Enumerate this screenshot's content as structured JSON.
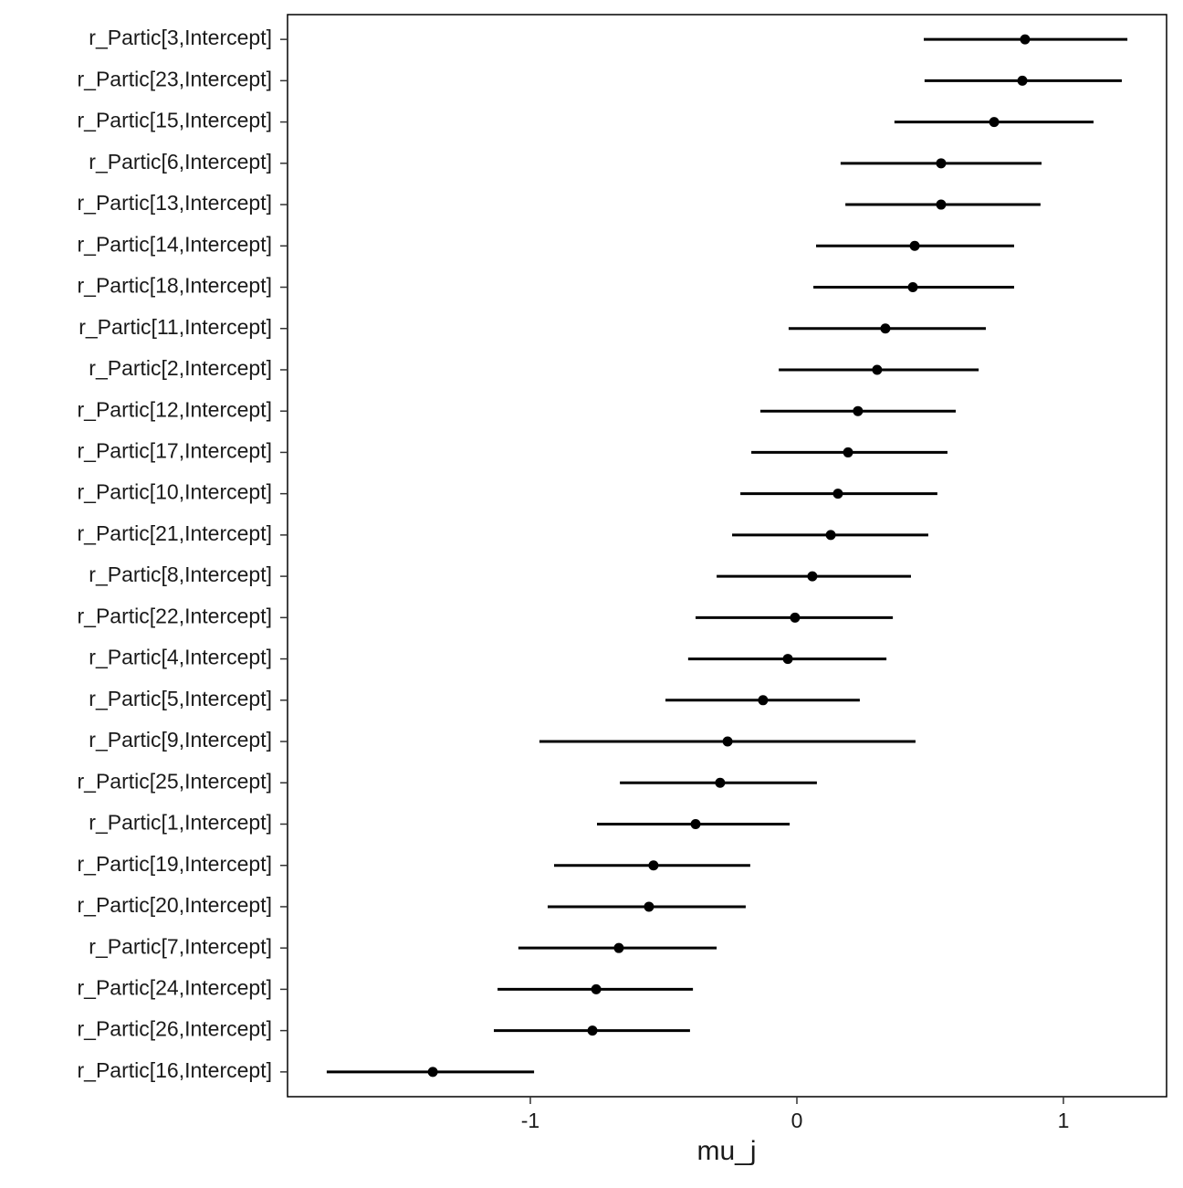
{
  "chart_data": {
    "type": "pointrange",
    "xlabel": "mu_j",
    "categories": [
      "r_Partic[3,Intercept]",
      "r_Partic[23,Intercept]",
      "r_Partic[15,Intercept]",
      "r_Partic[6,Intercept]",
      "r_Partic[13,Intercept]",
      "r_Partic[14,Intercept]",
      "r_Partic[18,Intercept]",
      "r_Partic[11,Intercept]",
      "r_Partic[2,Intercept]",
      "r_Partic[12,Intercept]",
      "r_Partic[17,Intercept]",
      "r_Partic[10,Intercept]",
      "r_Partic[21,Intercept]",
      "r_Partic[8,Intercept]",
      "r_Partic[22,Intercept]",
      "r_Partic[4,Intercept]",
      "r_Partic[5,Intercept]",
      "r_Partic[9,Intercept]",
      "r_Partic[25,Intercept]",
      "r_Partic[1,Intercept]",
      "r_Partic[19,Intercept]",
      "r_Partic[20,Intercept]",
      "r_Partic[7,Intercept]",
      "r_Partic[24,Intercept]",
      "r_Partic[26,Intercept]",
      "r_Partic[16,Intercept]"
    ],
    "values": [
      0.856,
      0.846,
      0.74,
      0.541,
      0.541,
      0.442,
      0.435,
      0.332,
      0.301,
      0.229,
      0.192,
      0.154,
      0.127,
      0.058,
      -0.007,
      -0.034,
      -0.127,
      -0.26,
      -0.288,
      -0.38,
      -0.538,
      -0.555,
      -0.668,
      -0.753,
      -0.767,
      -1.366
    ],
    "lower": [
      0.476,
      0.479,
      0.366,
      0.164,
      0.182,
      0.072,
      0.062,
      -0.031,
      -0.068,
      -0.137,
      -0.171,
      -0.212,
      -0.243,
      -0.301,
      -0.38,
      -0.408,
      -0.493,
      -0.966,
      -0.664,
      -0.75,
      -0.911,
      -0.935,
      -1.045,
      -1.123,
      -1.137,
      -1.764
    ],
    "upper": [
      1.24,
      1.219,
      1.113,
      0.918,
      0.914,
      0.815,
      0.815,
      0.709,
      0.682,
      0.596,
      0.565,
      0.527,
      0.493,
      0.428,
      0.36,
      0.336,
      0.236,
      0.445,
      0.075,
      -0.027,
      -0.175,
      -0.192,
      -0.301,
      -0.39,
      -0.401,
      -0.986
    ],
    "color": "#000000",
    "xlim": [
      -1.911,
      1.387
    ],
    "xticks": [
      -1,
      0,
      1
    ]
  }
}
